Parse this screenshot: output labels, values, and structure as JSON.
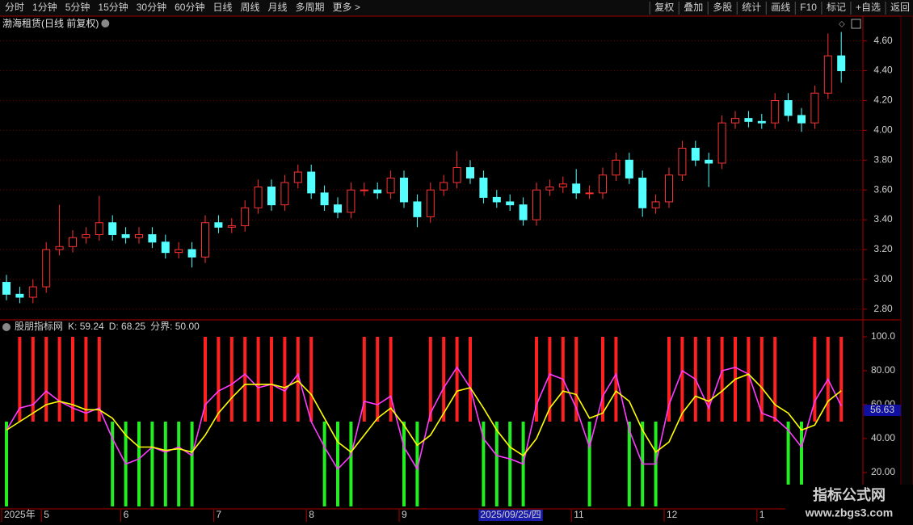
{
  "toolbar": {
    "left": [
      "分时",
      "1分钟",
      "5分钟",
      "15分钟",
      "30分钟",
      "60分钟",
      "日线",
      "周线",
      "月线",
      "多周期",
      "更多 >"
    ],
    "right": [
      "复权",
      "叠加",
      "多股",
      "统计",
      "画线",
      "F10",
      "标记",
      "+自选",
      "返回"
    ]
  },
  "watermark": {
    "title": "指标公式网",
    "url": "www.zbgs3.com"
  },
  "chart_data": [
    {
      "type": "candlestick",
      "title": "渤海租赁(日线 前复权)",
      "categories": [
        "2025年",
        null,
        null,
        "5",
        null,
        null,
        null,
        null,
        null,
        "6",
        null,
        null,
        null,
        null,
        null,
        null,
        "7",
        null,
        null,
        null,
        null,
        null,
        null,
        "8",
        null,
        null,
        null,
        null,
        null,
        null,
        "9",
        null,
        null,
        null,
        null,
        null,
        "2025/09/25/四",
        null,
        null,
        null,
        null,
        null,
        null,
        "11",
        null,
        null,
        null,
        null,
        null,
        null,
        "12",
        null,
        null,
        null,
        null,
        null,
        null,
        "1",
        null,
        null,
        null,
        null,
        null,
        null
      ],
      "selected_category": 36,
      "open": [
        2.98,
        2.9,
        2.88,
        2.95,
        3.2,
        3.22,
        3.28,
        3.3,
        3.38,
        3.3,
        3.28,
        3.3,
        3.25,
        3.18,
        3.2,
        3.15,
        3.38,
        3.35,
        3.36,
        3.48,
        3.62,
        3.5,
        3.65,
        3.72,
        3.58,
        3.5,
        3.45,
        3.6,
        3.6,
        3.58,
        3.68,
        3.52,
        3.42,
        3.6,
        3.65,
        3.75,
        3.68,
        3.55,
        3.52,
        3.5,
        3.4,
        3.6,
        3.62,
        3.64,
        3.58,
        3.58,
        3.7,
        3.8,
        3.68,
        3.48,
        3.52,
        3.7,
        3.88,
        3.8,
        3.78,
        4.05,
        4.08,
        4.06,
        4.05,
        4.2,
        4.1,
        4.05,
        4.25,
        4.5
      ],
      "high": [
        3.03,
        2.95,
        3.0,
        3.25,
        3.5,
        3.33,
        3.35,
        3.56,
        3.43,
        3.35,
        3.35,
        3.35,
        3.3,
        3.25,
        3.25,
        3.43,
        3.43,
        3.41,
        3.53,
        3.67,
        3.67,
        3.7,
        3.77,
        3.77,
        3.63,
        3.55,
        3.65,
        3.65,
        3.65,
        3.73,
        3.73,
        3.57,
        3.65,
        3.7,
        3.86,
        3.8,
        3.73,
        3.6,
        3.57,
        3.55,
        3.65,
        3.67,
        3.69,
        3.74,
        3.63,
        3.75,
        3.85,
        3.85,
        3.73,
        3.57,
        3.75,
        3.93,
        3.93,
        3.85,
        4.1,
        4.13,
        4.13,
        4.11,
        4.25,
        4.25,
        4.15,
        4.3,
        4.65,
        4.66
      ],
      "low": [
        2.86,
        2.84,
        2.84,
        2.91,
        3.16,
        3.18,
        3.24,
        3.26,
        3.26,
        3.24,
        3.24,
        3.21,
        3.14,
        3.14,
        3.08,
        3.11,
        3.31,
        3.31,
        3.32,
        3.44,
        3.46,
        3.46,
        3.61,
        3.54,
        3.46,
        3.41,
        3.41,
        3.56,
        3.54,
        3.54,
        3.48,
        3.35,
        3.38,
        3.56,
        3.61,
        3.64,
        3.51,
        3.48,
        3.46,
        3.36,
        3.36,
        3.56,
        3.58,
        3.54,
        3.54,
        3.54,
        3.66,
        3.64,
        3.42,
        3.44,
        3.48,
        3.66,
        3.76,
        3.62,
        3.74,
        4.01,
        4.02,
        4.01,
        4.01,
        4.06,
        3.99,
        4.01,
        4.21,
        4.32
      ],
      "close": [
        2.9,
        2.88,
        2.95,
        3.2,
        3.22,
        3.28,
        3.3,
        3.38,
        3.3,
        3.28,
        3.3,
        3.25,
        3.18,
        3.2,
        3.15,
        3.38,
        3.35,
        3.36,
        3.48,
        3.62,
        3.5,
        3.65,
        3.72,
        3.58,
        3.5,
        3.45,
        3.6,
        3.6,
        3.58,
        3.68,
        3.52,
        3.42,
        3.6,
        3.65,
        3.75,
        3.68,
        3.55,
        3.52,
        3.5,
        3.4,
        3.6,
        3.62,
        3.64,
        3.58,
        3.58,
        3.7,
        3.8,
        3.68,
        3.48,
        3.52,
        3.7,
        3.88,
        3.8,
        3.78,
        4.05,
        4.08,
        4.06,
        4.05,
        4.2,
        4.1,
        4.05,
        4.25,
        4.5,
        4.4
      ],
      "up_color": "#ff3232",
      "down_color": "#54ffff",
      "ylim": [
        2.75,
        4.75
      ],
      "yticks": [
        {
          "value": 2.8,
          "label": "2.80"
        },
        {
          "value": 3.0,
          "label": "3.00"
        },
        {
          "value": 3.2,
          "label": "3.20"
        },
        {
          "value": 3.4,
          "label": "3.40"
        },
        {
          "value": 3.6,
          "label": "3.60"
        },
        {
          "value": 3.8,
          "label": "3.80"
        },
        {
          "value": 4.0,
          "label": "4.00"
        },
        {
          "value": 4.2,
          "label": "4.20"
        },
        {
          "value": 4.4,
          "label": "4.40"
        },
        {
          "value": 4.6,
          "label": "4.60"
        }
      ],
      "grid": true
    },
    {
      "type": "indicator",
      "title": "股朋指标网",
      "series": [
        {
          "label": "K: 59.24",
          "color": "#ff3cff",
          "values": [
            45,
            58,
            60,
            68,
            62,
            58,
            55,
            58,
            40,
            25,
            28,
            35,
            32,
            35,
            30,
            60,
            68,
            72,
            78,
            70,
            72,
            68,
            78,
            50,
            35,
            22,
            30,
            62,
            60,
            65,
            35,
            22,
            55,
            70,
            82,
            70,
            40,
            30,
            28,
            25,
            60,
            78,
            75,
            58,
            35,
            65,
            78,
            45,
            25,
            25,
            60,
            80,
            75,
            58,
            80,
            82,
            78,
            55,
            52,
            45,
            35,
            62,
            75,
            59.24
          ]
        },
        {
          "label": "D: 68.25",
          "color": "#ffff00",
          "values": [
            45,
            50,
            55,
            60,
            62,
            60,
            57,
            57,
            52,
            42,
            35,
            35,
            33,
            34,
            32,
            42,
            55,
            64,
            72,
            72,
            72,
            70,
            74,
            66,
            52,
            38,
            32,
            42,
            52,
            58,
            48,
            36,
            42,
            55,
            68,
            70,
            58,
            45,
            35,
            30,
            40,
            58,
            68,
            66,
            52,
            55,
            68,
            62,
            45,
            32,
            38,
            55,
            65,
            62,
            68,
            75,
            78,
            70,
            60,
            55,
            45,
            48,
            62,
            68.25
          ]
        }
      ],
      "bars": {
        "up_color": "#ff2020",
        "down_color": "#22ee22",
        "values": [
          0,
          100,
          100,
          100,
          100,
          100,
          100,
          100,
          0,
          0,
          0,
          0,
          0,
          0,
          0,
          100,
          100,
          100,
          100,
          100,
          100,
          100,
          100,
          100,
          0,
          0,
          0,
          100,
          100,
          100,
          0,
          0,
          100,
          100,
          100,
          100,
          0,
          0,
          0,
          0,
          100,
          100,
          100,
          100,
          0,
          100,
          100,
          0,
          0,
          0,
          100,
          100,
          100,
          100,
          100,
          100,
          100,
          100,
          100,
          0,
          0,
          100,
          100,
          100
        ]
      },
      "boundary": {
        "value": 50,
        "label": "分界: 50.00"
      },
      "marker": {
        "value": 56.63,
        "label": "56.63"
      },
      "ylim": [
        0,
        105
      ],
      "yticks": [
        {
          "value": 20,
          "label": "20.00"
        },
        {
          "value": 40,
          "label": "40.00"
        },
        {
          "value": 60,
          "label": "60.00"
        },
        {
          "value": 80,
          "label": "80.00"
        },
        {
          "value": 100,
          "label": "100.0"
        }
      ]
    }
  ]
}
